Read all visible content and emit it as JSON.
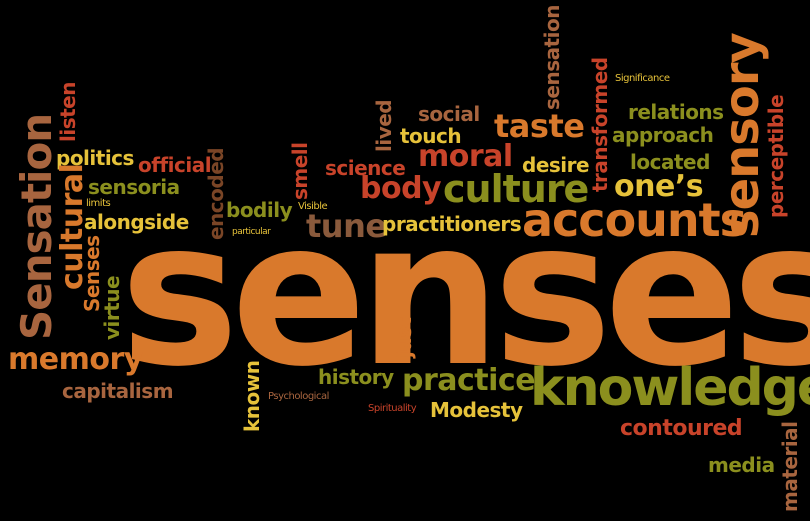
{
  "words": {
    "senses": "senses",
    "knowledge": "knowledge",
    "accounts": "accounts",
    "culture": "culture",
    "sensory": "sensory",
    "sensation_big": "Sensation",
    "cultural": "cultural",
    "memory": "memory",
    "practice": "practice",
    "taste": "taste",
    "moral": "moral",
    "body": "body",
    "ones": "one’s",
    "tune": "tune",
    "practitioners": "practitioners",
    "contoured": "contoured",
    "modesty": "Modesty",
    "history": "history",
    "capitalism": "capitalism",
    "politics": "politics",
    "official": "official",
    "sensoria": "sensoria",
    "alongside": "alongside",
    "bodily": "bodily",
    "science": "science",
    "desire": "desire",
    "located": "located",
    "approach": "approach",
    "relations": "relations",
    "social": "social",
    "touch": "touch",
    "media": "media",
    "listen": "listen",
    "senses_small": "Senses",
    "virtue": "virtue",
    "encoded": "encoded",
    "smell": "smell",
    "lived": "lived",
    "sensation_v": "sensation",
    "transformed": "transformed",
    "perceptible": "perceptible",
    "material": "material",
    "known": "known",
    "just": "just",
    "significance": "Significance",
    "limits": "limits",
    "particular": "particular",
    "visible": "Visible",
    "psychological": "Psychological",
    "spirituality": "Spirituality"
  },
  "colors": {
    "orange": "#d9792c",
    "red": "#c8432a",
    "yellow": "#e6c23a",
    "olive": "#8b8f1e",
    "tan": "#a8653f",
    "brown": "#8a5a3c",
    "background": "#000000"
  }
}
